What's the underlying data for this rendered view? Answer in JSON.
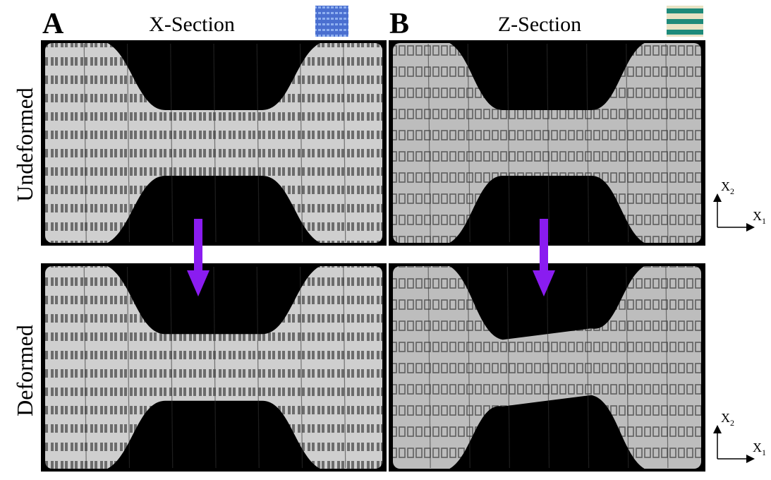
{
  "panels": [
    {
      "letter": "A",
      "title": "X-Section"
    },
    {
      "letter": "B",
      "title": "Z-Section"
    }
  ],
  "rows": [
    {
      "label": "Undeformed"
    },
    {
      "label": "Deformed"
    }
  ],
  "axes": {
    "vertical": {
      "letter": "X",
      "sub": "2"
    },
    "horizontal": {
      "letter": "X",
      "sub": "1"
    }
  }
}
